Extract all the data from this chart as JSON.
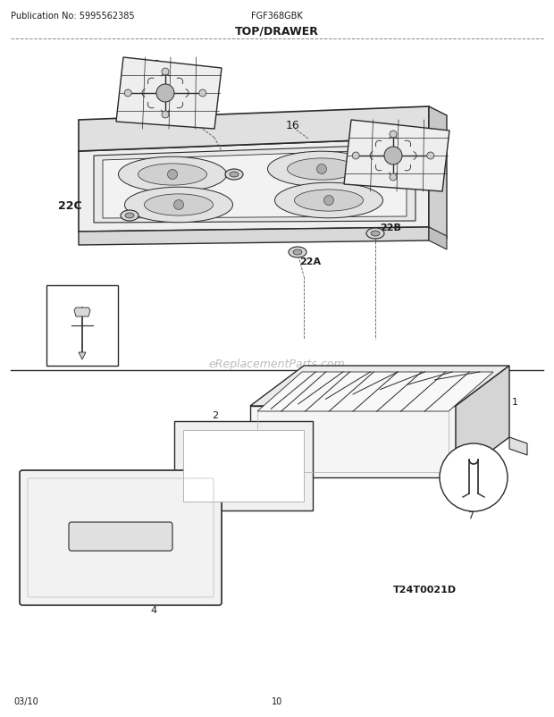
{
  "page_title": "TOP/DRAWER",
  "pub_no": "Publication No: 5995562385",
  "model": "FGF368GBK",
  "diagram_id": "T24T0021D",
  "footer_left": "03/10",
  "footer_center": "10",
  "watermark": "eReplacementParts.com",
  "bg_color": "#ffffff",
  "lc": "#2a2a2a",
  "tc": "#1a1a1a",
  "dc": "#555555",
  "fig_w": 6.2,
  "fig_h": 8.03,
  "dpi": 100
}
